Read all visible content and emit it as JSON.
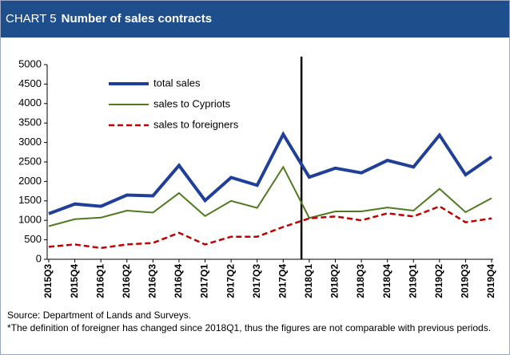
{
  "chart_data": {
    "type": "line",
    "chart_label": "CHART 5",
    "title": "Number of sales contracts",
    "categories": [
      "2015Q3",
      "2015Q4",
      "2016Q1",
      "2016Q2",
      "2016Q3",
      "2016Q4",
      "2017Q1",
      "2017Q2",
      "2017Q3",
      "2017Q4",
      "2018Q1",
      "2018Q2",
      "2018Q3",
      "2018Q4",
      "2019Q1",
      "2019Q2",
      "2019Q3",
      "2019Q4"
    ],
    "series": [
      {
        "name": "total sales",
        "color": "#1f3f99",
        "values": [
          1170,
          1420,
          1360,
          1650,
          1630,
          2410,
          1510,
          2100,
          1900,
          3210,
          2110,
          2340,
          2220,
          2540,
          2370,
          3190,
          2170,
          2630
        ]
      },
      {
        "name": "sales to Cypriots",
        "color": "#4f7a1f",
        "values": [
          850,
          1030,
          1070,
          1250,
          1200,
          1700,
          1110,
          1500,
          1320,
          2370,
          1060,
          1230,
          1230,
          1330,
          1250,
          1810,
          1210,
          1570
        ]
      },
      {
        "name": "sales to foreigners",
        "color": "#c00000",
        "dash": true,
        "values": [
          320,
          380,
          290,
          380,
          420,
          680,
          380,
          580,
          580,
          830,
          1050,
          1100,
          1000,
          1180,
          1100,
          1360,
          950,
          1050
        ]
      }
    ],
    "ylim": [
      0,
      5000
    ],
    "yticks": [
      0,
      500,
      1000,
      1500,
      2000,
      2500,
      3000,
      3500,
      4000,
      4500,
      5000
    ],
    "source": "Source: Department of Lands and Surveys.",
    "note": "*The definition of foreigner has changed since 2018Q1, thus the figures are not comparable with previous periods."
  }
}
